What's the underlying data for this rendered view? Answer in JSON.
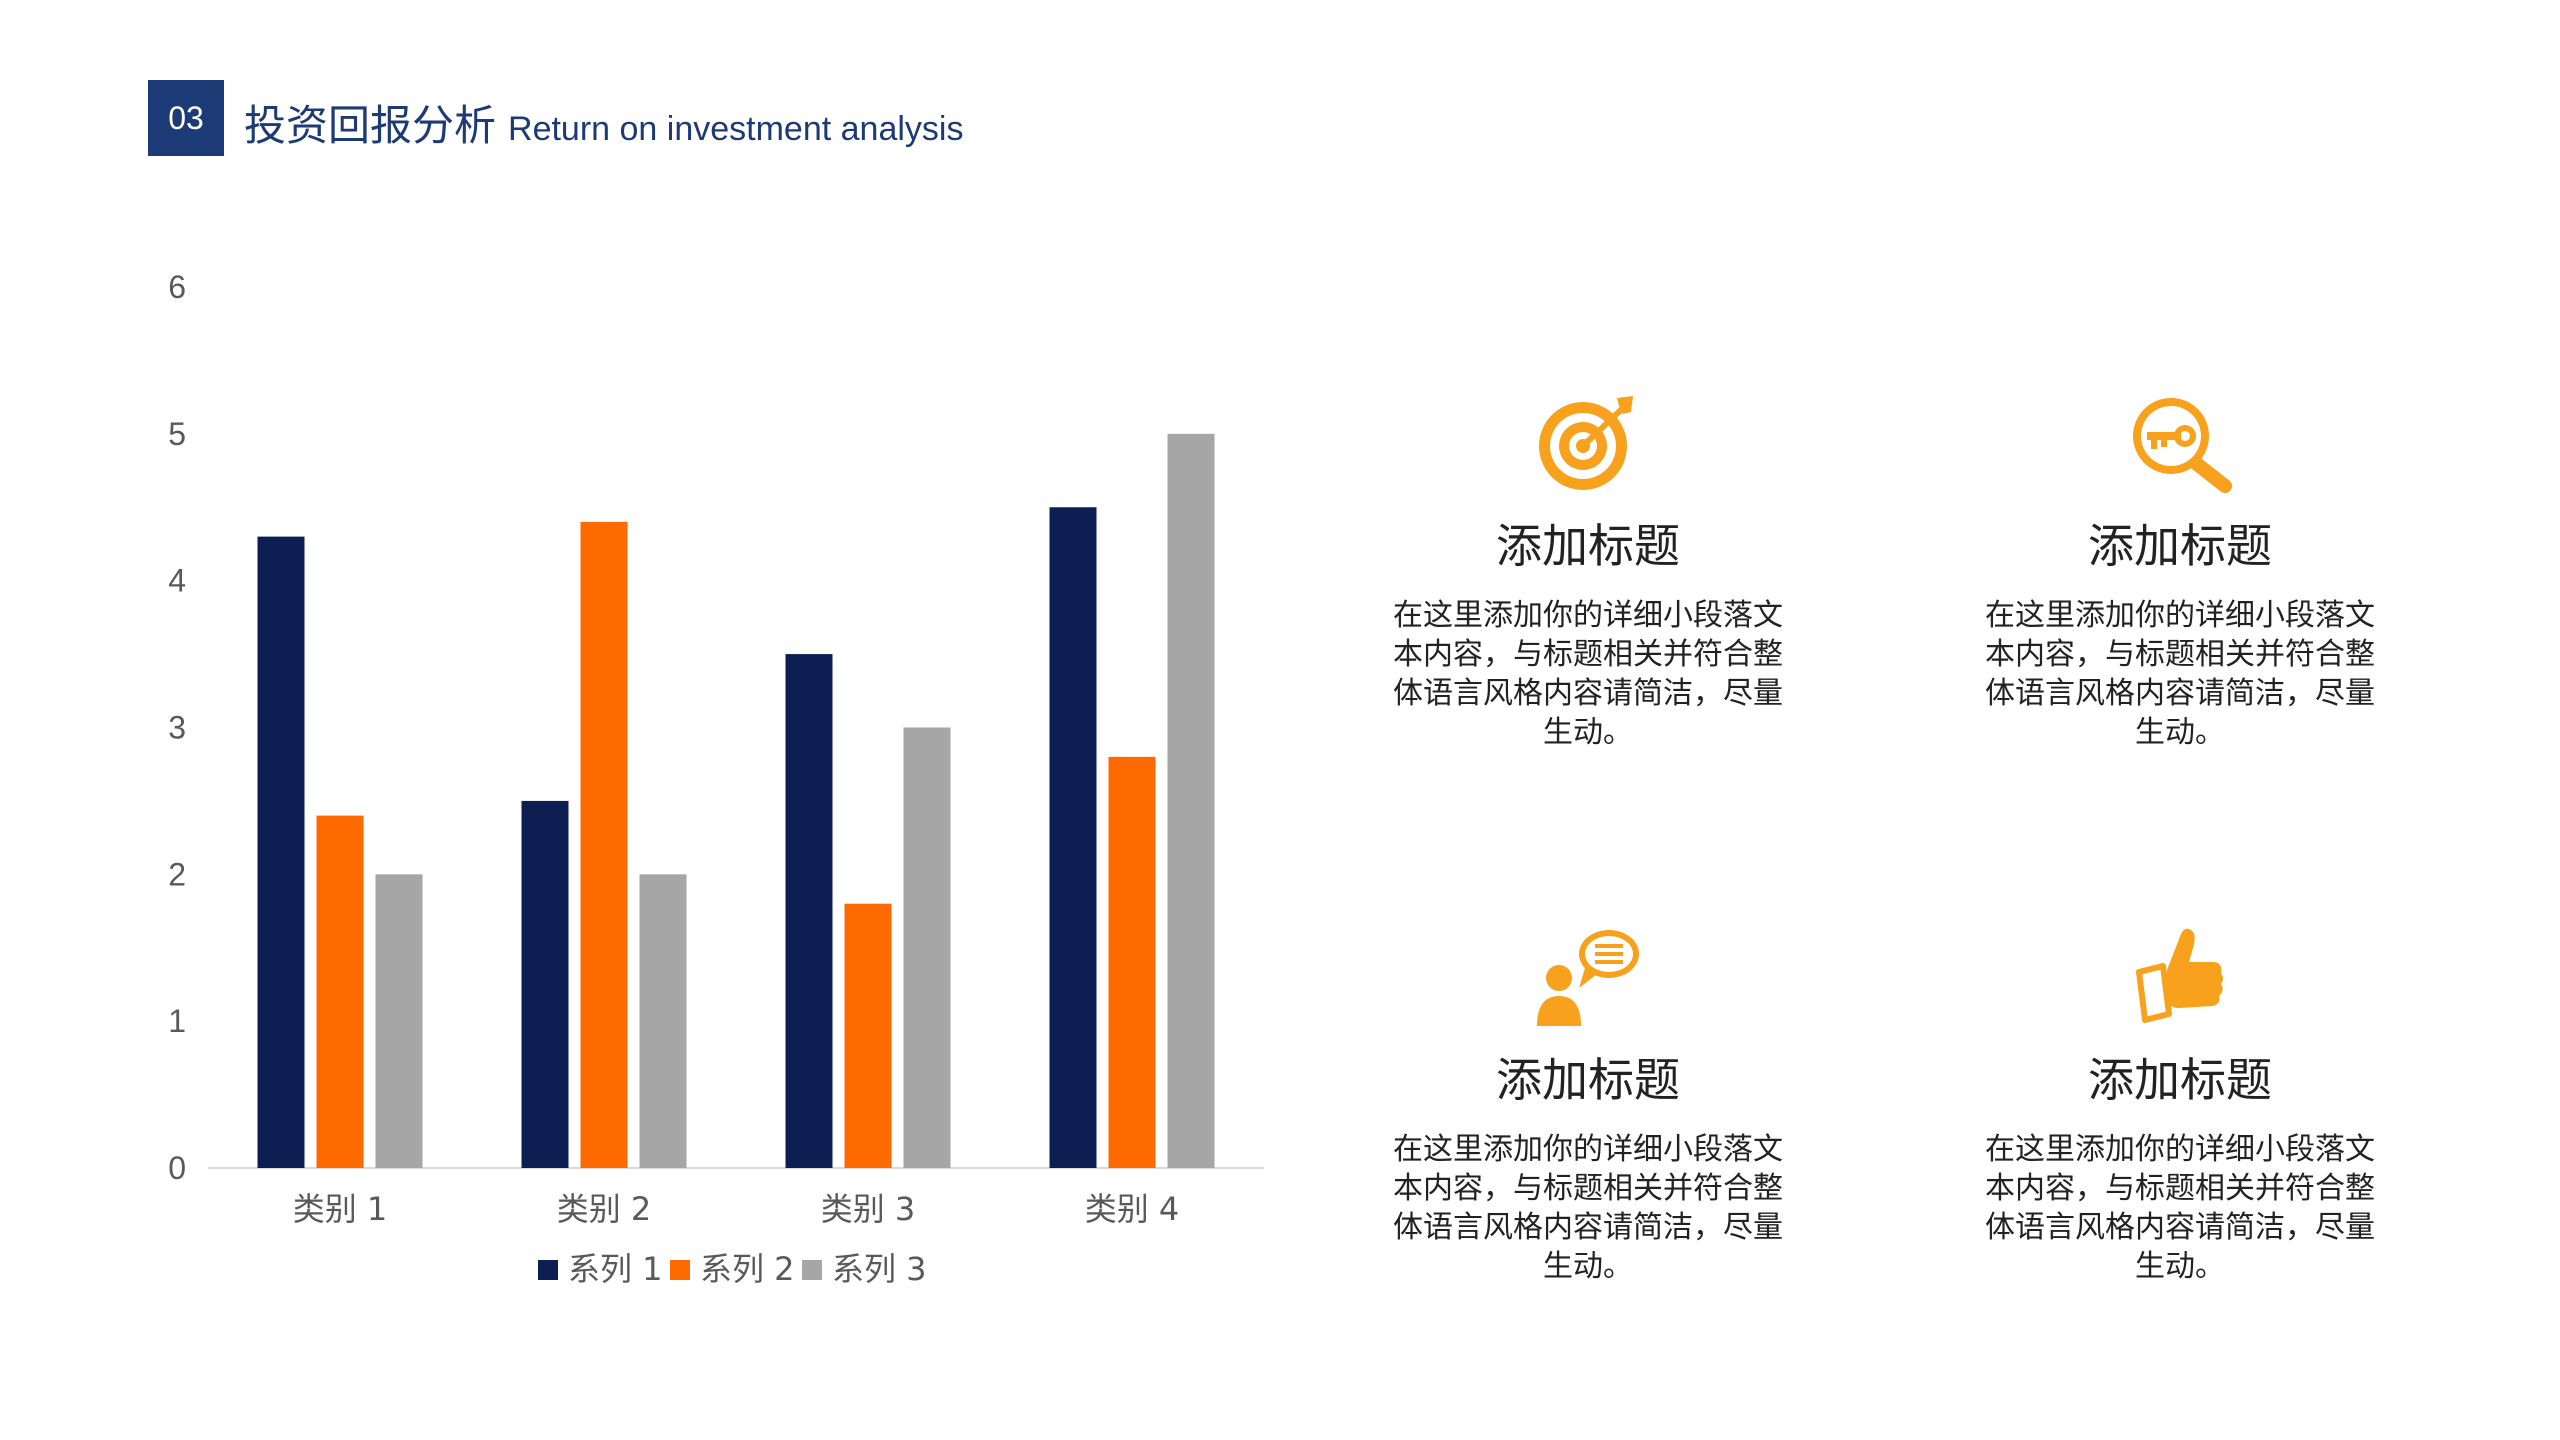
{
  "header": {
    "number": "03",
    "title_zh": "投资回报分析",
    "title_en": "Return on investment analysis"
  },
  "colors": {
    "navy": "#0d1f52",
    "orange": "#ff6a00",
    "gray": "#a6a6a6",
    "icon_orange": "#f7a11d",
    "badge_blue": "#1c3a75"
  },
  "chart_data": {
    "type": "bar",
    "categories": [
      "类别 1",
      "类别 2",
      "类别 3",
      "类别 4"
    ],
    "series": [
      {
        "name": "系列 1",
        "values": [
          4.3,
          2.5,
          3.5,
          4.5
        ],
        "color": "#0d1f52"
      },
      {
        "name": "系列 2",
        "values": [
          2.4,
          4.4,
          1.8,
          2.8
        ],
        "color": "#ff6a00"
      },
      {
        "name": "系列 3",
        "values": [
          2.0,
          2.0,
          3.0,
          5.0
        ],
        "color": "#a6a6a6"
      }
    ],
    "ylim": [
      0,
      6
    ],
    "yticks": [
      "0",
      "1",
      "2",
      "3",
      "4",
      "5",
      "6"
    ],
    "grid": false,
    "legend": "bottom"
  },
  "cards": [
    {
      "icon": "target-icon",
      "title": "添加标题",
      "text": "在这里添加你的详细小段落文本内容，与标题相关并符合整体语言风格内容请简洁，尽量生动。"
    },
    {
      "icon": "key-search-icon",
      "title": "添加标题",
      "text": "在这里添加你的详细小段落文本内容，与标题相关并符合整体语言风格内容请简洁，尽量生动。"
    },
    {
      "icon": "speaker-chat-icon",
      "title": "添加标题",
      "text": "在这里添加你的详细小段落文本内容，与标题相关并符合整体语言风格内容请简洁，尽量生动。"
    },
    {
      "icon": "thumbs-up-icon",
      "title": "添加标题",
      "text": "在这里添加你的详细小段落文本内容，与标题相关并符合整体语言风格内容请简洁，尽量生动。"
    }
  ]
}
